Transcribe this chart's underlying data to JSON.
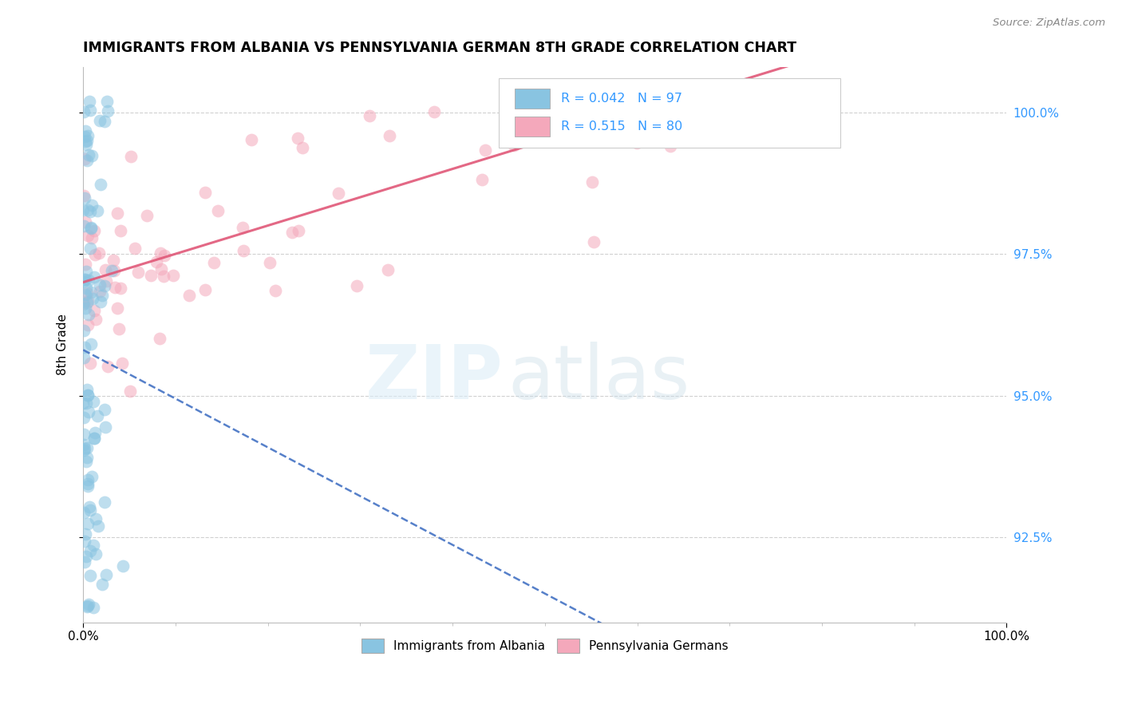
{
  "title": "IMMIGRANTS FROM ALBANIA VS PENNSYLVANIA GERMAN 8TH GRADE CORRELATION CHART",
  "source": "Source: ZipAtlas.com",
  "legend_label_blue": "Immigrants from Albania",
  "legend_label_pink": "Pennsylvania Germans",
  "R_blue": 0.042,
  "N_blue": 97,
  "R_pink": 0.515,
  "N_pink": 80,
  "watermark_zip": "ZIP",
  "watermark_atlas": "atlas",
  "blue_scatter_color": "#89c4e1",
  "pink_scatter_color": "#f4a8bb",
  "blue_line_color": "#4472c4",
  "pink_line_color": "#e05878",
  "xmin": 0.0,
  "xmax": 1.0,
  "ymin": 91.0,
  "ymax": 100.8,
  "ytick_vals": [
    92.5,
    95.0,
    97.5,
    100.0
  ],
  "ytick_labels": [
    "92.5%",
    "95.0%",
    "97.5%",
    "100.0%"
  ],
  "background_color": "#ffffff",
  "grid_color": "#d0d0d0",
  "blue_seed": 12,
  "pink_seed": 99
}
